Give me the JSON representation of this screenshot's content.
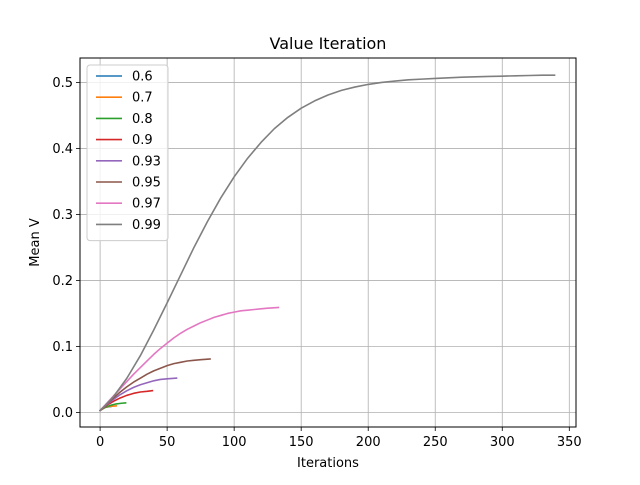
{
  "chart_data": {
    "type": "line",
    "title": "Value Iteration",
    "xlabel": "Iterations",
    "ylabel": "Mean V",
    "xlim": [
      -15,
      355
    ],
    "ylim": [
      -0.022,
      0.537
    ],
    "xticks": [
      0,
      50,
      100,
      150,
      200,
      250,
      300,
      350
    ],
    "yticks": [
      0.0,
      0.1,
      0.2,
      0.3,
      0.4,
      0.5
    ],
    "xtick_labels": [
      "0",
      "50",
      "100",
      "150",
      "200",
      "250",
      "300",
      "350"
    ],
    "ytick_labels": [
      "0.0",
      "0.1",
      "0.2",
      "0.3",
      "0.4",
      "0.5"
    ],
    "grid": true,
    "legend_position": "upper-left",
    "series": [
      {
        "name": "0.6",
        "color": "#1f77b4",
        "x": [
          0,
          2,
          4,
          6,
          8
        ],
        "y": [
          0.003,
          0.006,
          0.008,
          0.0085,
          0.009
        ]
      },
      {
        "name": "0.7",
        "color": "#ff7f0e",
        "x": [
          0,
          3,
          6,
          9,
          12
        ],
        "y": [
          0.003,
          0.007,
          0.009,
          0.0095,
          0.01
        ]
      },
      {
        "name": "0.8",
        "color": "#2ca02c",
        "x": [
          0,
          4,
          8,
          12,
          16,
          19
        ],
        "y": [
          0.003,
          0.008,
          0.011,
          0.013,
          0.014,
          0.0145
        ]
      },
      {
        "name": "0.9",
        "color": "#d62728",
        "x": [
          0,
          5,
          10,
          15,
          20,
          25,
          30,
          35,
          39
        ],
        "y": [
          0.003,
          0.011,
          0.017,
          0.022,
          0.026,
          0.029,
          0.031,
          0.032,
          0.033
        ]
      },
      {
        "name": "0.93",
        "color": "#9467bd",
        "x": [
          0,
          5,
          10,
          15,
          20,
          25,
          30,
          35,
          40,
          45,
          50,
          57
        ],
        "y": [
          0.003,
          0.012,
          0.02,
          0.027,
          0.033,
          0.038,
          0.042,
          0.045,
          0.048,
          0.05,
          0.051,
          0.052
        ]
      },
      {
        "name": "0.95",
        "color": "#8c564b",
        "x": [
          0,
          5,
          10,
          15,
          20,
          25,
          30,
          35,
          40,
          45,
          50,
          55,
          60,
          65,
          70,
          75,
          82
        ],
        "y": [
          0.003,
          0.013,
          0.022,
          0.031,
          0.039,
          0.046,
          0.052,
          0.058,
          0.063,
          0.067,
          0.071,
          0.074,
          0.076,
          0.078,
          0.079,
          0.08,
          0.081
        ]
      },
      {
        "name": "0.97",
        "color": "#e377c2",
        "x": [
          0,
          5,
          10,
          15,
          20,
          25,
          30,
          35,
          40,
          45,
          50,
          55,
          60,
          65,
          70,
          75,
          80,
          85,
          90,
          95,
          100,
          105,
          110,
          115,
          120,
          125,
          133
        ],
        "y": [
          0.003,
          0.014,
          0.025,
          0.036,
          0.047,
          0.058,
          0.068,
          0.078,
          0.088,
          0.097,
          0.105,
          0.113,
          0.12,
          0.126,
          0.131,
          0.136,
          0.14,
          0.144,
          0.147,
          0.15,
          0.152,
          0.154,
          0.155,
          0.156,
          0.157,
          0.158,
          0.159
        ]
      },
      {
        "name": "0.99",
        "color": "#7f7f7f",
        "x": [
          0,
          10,
          20,
          30,
          40,
          50,
          60,
          70,
          80,
          90,
          100,
          110,
          120,
          130,
          140,
          150,
          160,
          170,
          180,
          190,
          200,
          210,
          220,
          230,
          240,
          250,
          260,
          270,
          280,
          290,
          300,
          310,
          320,
          330,
          339
        ],
        "y": [
          0.003,
          0.024,
          0.052,
          0.086,
          0.125,
          0.166,
          0.208,
          0.25,
          0.289,
          0.325,
          0.357,
          0.385,
          0.409,
          0.43,
          0.447,
          0.461,
          0.472,
          0.481,
          0.488,
          0.493,
          0.497,
          0.5,
          0.502,
          0.504,
          0.505,
          0.506,
          0.507,
          0.508,
          0.5085,
          0.509,
          0.5095,
          0.51,
          0.5105,
          0.511,
          0.511
        ]
      }
    ]
  }
}
